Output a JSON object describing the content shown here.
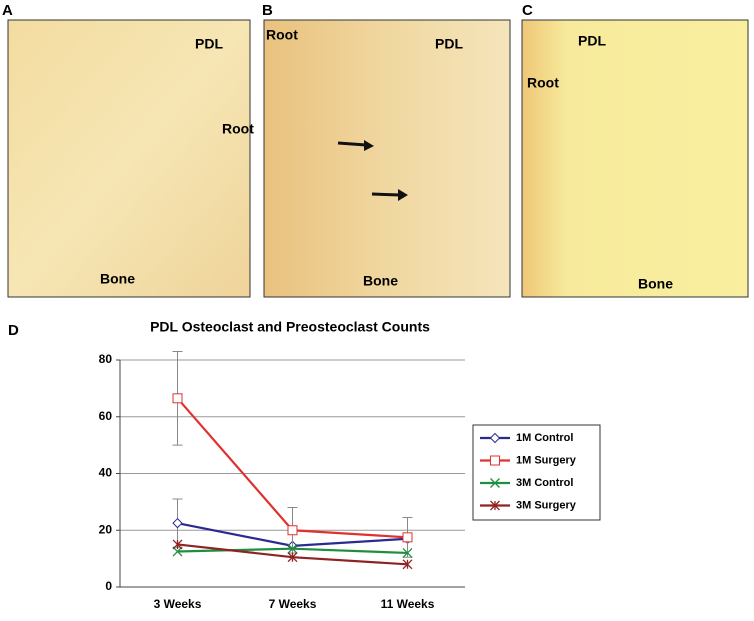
{
  "panels": [
    {
      "label": "A",
      "texts": [
        "PDL",
        "Root",
        "Bone"
      ]
    },
    {
      "label": "B",
      "texts": [
        "Root",
        "PDL",
        "Bone"
      ]
    },
    {
      "label": "C",
      "texts": [
        "PDL",
        "Root",
        "Bone"
      ]
    }
  ],
  "chart_label": "D",
  "chart_data": {
    "type": "line",
    "title": "PDL Osteoclast and Preosteoclast Counts",
    "categories": [
      "3 Weeks",
      "7 Weeks",
      "11 Weeks"
    ],
    "series": [
      {
        "name": "1M Control",
        "color": "#2b2b8f",
        "marker": "diamond",
        "values": [
          22.5,
          14.5,
          17
        ],
        "errors": [
          8.5,
          null,
          null
        ]
      },
      {
        "name": "1M Surgery",
        "color": "#e03131",
        "marker": "square",
        "values": [
          66.5,
          20,
          17.5
        ],
        "errors": [
          16.5,
          8,
          7
        ]
      },
      {
        "name": "3M Control",
        "color": "#1f8f3f",
        "marker": "x",
        "values": [
          12.5,
          13.5,
          12
        ]
      },
      {
        "name": "3M Surgery",
        "color": "#8f2323",
        "marker": "asterisk",
        "values": [
          15,
          10.5,
          8
        ]
      }
    ],
    "ylim": [
      0,
      80
    ],
    "yticks": [
      0,
      20,
      40,
      60,
      80
    ],
    "grid": true,
    "legend": "right"
  }
}
